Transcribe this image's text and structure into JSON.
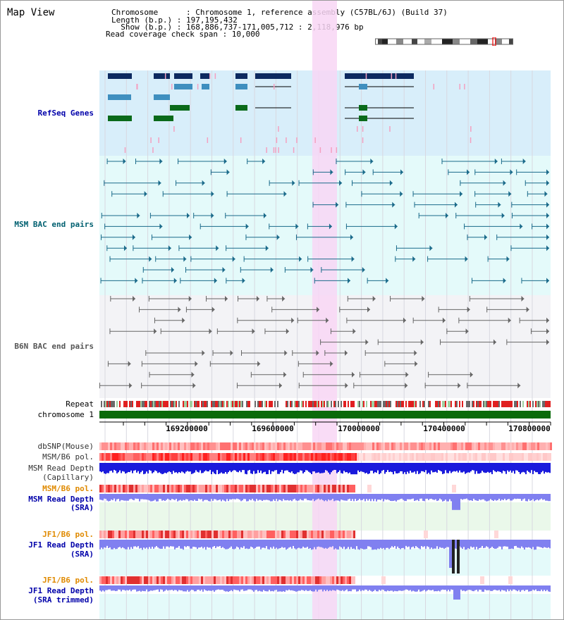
{
  "view": {
    "title": "Map View",
    "info": {
      "chromosome_line": "Chromosome      : Chromosome 1, reference assembly (C57BL/6J) (Build 37)",
      "length_line": "Length (b.p.) : 197,195,432",
      "show_line": "  Show (b.p.) : 168,886,737-171,005,712 : 2,118,976 bp",
      "coverage_line": "Read coverage check span : 10,000"
    }
  },
  "tracks": {
    "refseq": "RefSeq Genes",
    "msm_bac": "MSM BAC end pairs",
    "b6n_bac": "B6N BAC end pairs",
    "repeat": "Repeat",
    "chromosome": "chromosome 1",
    "dbsnp": "dbSNP(Mouse)",
    "msm_b6_pol_1": "MSM/B6 pol.",
    "msm_depth_cap_1": "MSM Read Depth",
    "msm_depth_cap_2": "(Capillary)",
    "msm_b6_pol_2": "MSM/B6 pol.",
    "msm_depth_sra_1": "MSM Read Depth",
    "msm_depth_sra_2": "(SRA)",
    "jf1_b6_pol_1": "JF1/B6 pol.",
    "jf1_depth_sra_1": "JF1 Read Depth",
    "jf1_depth_sra_2": "(SRA)",
    "jf1_b6_pol_2": "JF1/B6 pol.",
    "jf1_depth_trim_1": "JF1 Read Depth",
    "jf1_depth_trim_2": "(SRA trimmed)"
  },
  "axis": {
    "ticks": [
      "169200000",
      "169600000",
      "170000000",
      "170400000",
      "170800000"
    ]
  },
  "colors": {
    "refseq_bg": "#d8eefa",
    "msm_bg": "#e4fafa",
    "b6n_bg": "#f3f3f6",
    "highlight": "#f8d6f4",
    "gene_dark": "#0d2a60",
    "gene_mid": "#3f8fbf",
    "gene_green": "#0a6a1a",
    "msm_line": "#1a6a8a",
    "b6n_line": "#666666",
    "chrom": "#0a6a0a",
    "depth_blue": "#1a1adc",
    "depth_light": "#8080f0",
    "label_blue": "#0000aa",
    "label_orange": "#e08a00",
    "label_teal": "#006070"
  }
}
